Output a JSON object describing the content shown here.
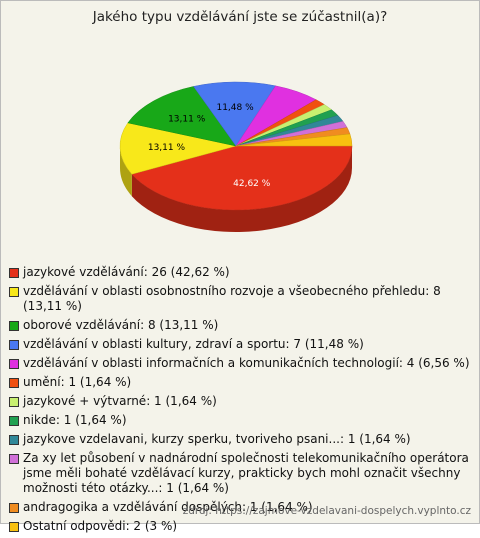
{
  "chart_data": {
    "type": "pie3d",
    "title": "Jakého typu vzdělávání jste se zúčastnil(a)?",
    "categories": [
      "jazykové vzdělávání: 26 (42,62 %)",
      "vzdělávání v oblasti osobnostního rozvoje a všeobecného přehledu: 8 (13,11 %)",
      "oborové vzdělávání: 8 (13,11 %)",
      "vzdělávání v oblasti kultury, zdraví a sportu: 7 (11,48 %)",
      "vzdělávání v oblasti informačních a komunikačních technologií: 4 (6,56 %)",
      "umění: 1 (1,64 %)",
      "jazykové + výtvarné: 1 (1,64 %)",
      "nikde: 1 (1,64 %)",
      "jazykove vzdelavani, kurzy sperku, tvoriveho psani...: 1 (1,64 %)",
      "Za xy let působení v nadnárodní společnosti telekomunikačního operátora jsme měli bohaté vzdělávací kurzy, prakticky bych mohl označit všechny možnosti této otázky...: 1 (1,64 %)",
      "andragogika a vzdělávání dospělých: 1 (1,64 %)",
      "Ostatní odpovědi: 2 (3 %)"
    ],
    "values": [
      42.62,
      13.11,
      13.11,
      11.48,
      6.56,
      1.64,
      1.64,
      1.64,
      1.64,
      1.64,
      1.64,
      3
    ],
    "value_labels": [
      "42,62 %",
      "13,11 %",
      "13,11 %",
      "11,48 %",
      null,
      null,
      null,
      null,
      null,
      null,
      null,
      null
    ],
    "colors": [
      "#e4301a",
      "#f8e81a",
      "#18a818",
      "#4a78f0",
      "#e030e0",
      "#f05010",
      "#c8f070",
      "#20a050",
      "#308898",
      "#d070d8",
      "#f08c20",
      "#f8c010"
    ],
    "source": "zdroj: https://zajmove-vzdelavani-dospelych.vyplnto.cz"
  }
}
